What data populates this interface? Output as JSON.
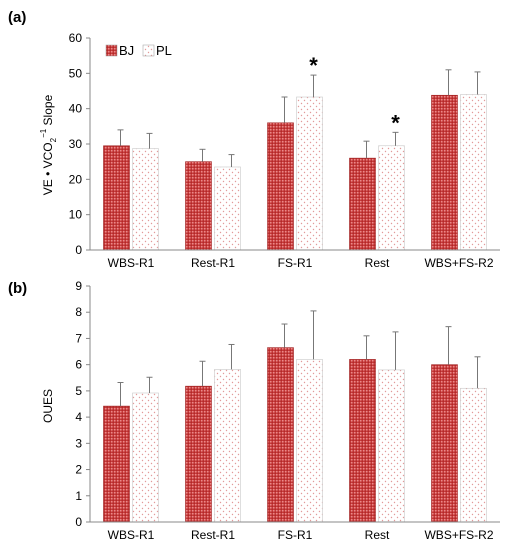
{
  "legend": [
    {
      "label": "BJ",
      "color": "#cc3b3b"
    },
    {
      "label": "PL",
      "color": "#d0d0d0"
    }
  ],
  "chart_data": [
    {
      "type": "bar",
      "panel_label": "(a)",
      "categories": [
        "WBS-R1",
        "Rest-R1",
        "FS-R1",
        "Rest",
        "WBS+FS-R2"
      ],
      "ylabel": "VE • VCO",
      "ylabel_sub": "2",
      "ylabel_sup": "−1",
      "ylabel_tail": " Slope",
      "ylim": [
        0,
        60
      ],
      "yticks": [
        0,
        10,
        20,
        30,
        40,
        50,
        60
      ],
      "grid": false,
      "legend_position": "top-left",
      "series": [
        {
          "name": "BJ",
          "values": [
            29.5,
            25.0,
            36.0,
            26.0,
            43.8
          ],
          "errors": [
            4.5,
            3.5,
            7.3,
            4.8,
            7.2
          ]
        },
        {
          "name": "PL",
          "values": [
            28.7,
            23.5,
            43.3,
            29.5,
            44.0
          ],
          "errors": [
            4.3,
            3.5,
            6.2,
            3.8,
            6.4
          ]
        }
      ],
      "annotations": [
        {
          "category": "FS-R1",
          "series": "PL",
          "text": "*"
        },
        {
          "category": "Rest",
          "series": "PL",
          "text": "*"
        }
      ]
    },
    {
      "type": "bar",
      "panel_label": "(b)",
      "categories": [
        "WBS-R1",
        "Rest-R1",
        "FS-R1",
        "Rest",
        "WBS+FS-R2"
      ],
      "ylabel": "OUES",
      "ylim": [
        0,
        9
      ],
      "yticks": [
        0,
        1,
        2,
        3,
        4,
        5,
        6,
        7,
        8,
        9
      ],
      "grid": false,
      "series": [
        {
          "name": "BJ",
          "values": [
            4.42,
            5.18,
            6.65,
            6.2,
            6.0
          ],
          "errors": [
            0.9,
            0.95,
            0.9,
            0.9,
            1.45
          ]
        },
        {
          "name": "PL",
          "values": [
            4.92,
            5.82,
            6.2,
            5.8,
            5.1
          ],
          "errors": [
            0.6,
            0.95,
            1.85,
            1.45,
            1.2
          ]
        }
      ],
      "annotations": []
    }
  ]
}
